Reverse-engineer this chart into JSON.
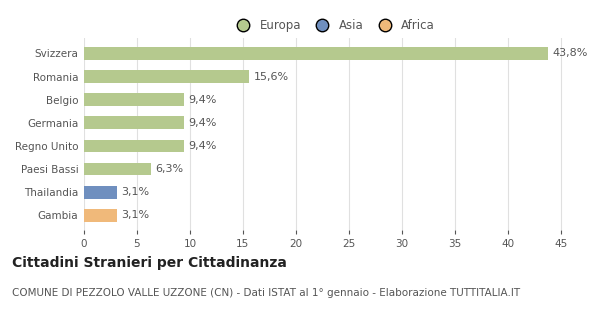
{
  "categories": [
    "Svizzera",
    "Romania",
    "Belgio",
    "Germania",
    "Regno Unito",
    "Paesi Bassi",
    "Thailandia",
    "Gambia"
  ],
  "values": [
    43.8,
    15.6,
    9.4,
    9.4,
    9.4,
    6.3,
    3.1,
    3.1
  ],
  "labels": [
    "43,8%",
    "15,6%",
    "9,4%",
    "9,4%",
    "9,4%",
    "6,3%",
    "3,1%",
    "3,1%"
  ],
  "bar_colors": [
    "#b5c98e",
    "#b5c98e",
    "#b5c98e",
    "#b5c98e",
    "#b5c98e",
    "#b5c98e",
    "#6f8fbf",
    "#f0b97a"
  ],
  "legend_items": [
    {
      "label": "Europa",
      "color": "#b5c98e"
    },
    {
      "label": "Asia",
      "color": "#6f8fbf"
    },
    {
      "label": "Africa",
      "color": "#f0b97a"
    }
  ],
  "xlim": [
    0,
    47
  ],
  "xticks": [
    0,
    5,
    10,
    15,
    20,
    25,
    30,
    35,
    40,
    45
  ],
  "title": "Cittadini Stranieri per Cittadinanza",
  "subtitle": "COMUNE DI PEZZOLO VALLE UZZONE (CN) - Dati ISTAT al 1° gennaio - Elaborazione TUTTITALIA.IT",
  "background_color": "#ffffff",
  "grid_color": "#e0e0e0",
  "bar_height": 0.55,
  "title_fontsize": 10,
  "subtitle_fontsize": 7.5,
  "label_fontsize": 8,
  "tick_fontsize": 7.5,
  "legend_fontsize": 8.5,
  "text_color": "#555555",
  "title_color": "#222222"
}
